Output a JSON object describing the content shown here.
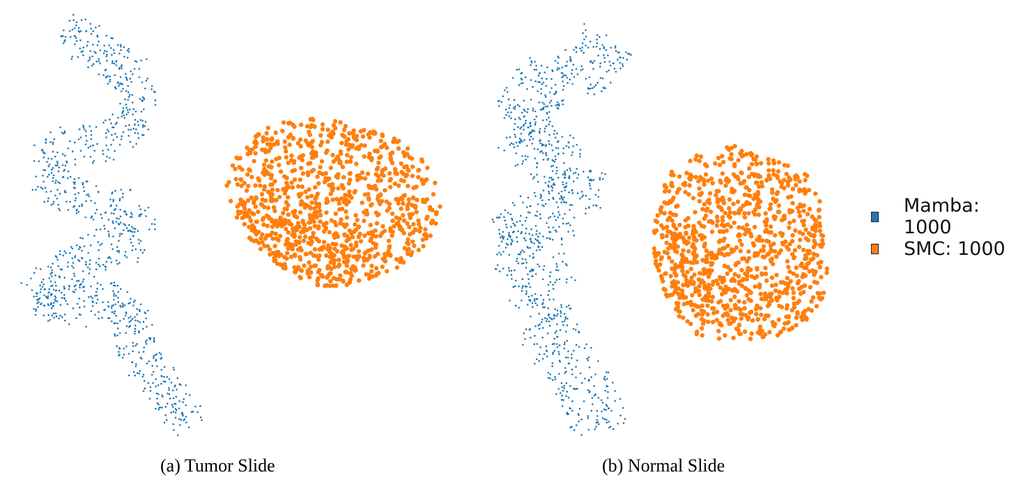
{
  "chart_data": [
    {
      "type": "scatter",
      "caption": "(a) Tumor Slide",
      "series": [
        {
          "name": "Mamba",
          "count": 1000,
          "color": "#1f77b4",
          "marker": "small-dot"
        },
        {
          "name": "SMC",
          "count": 1000,
          "color": "#ff7f0e",
          "marker": "large-dot"
        }
      ]
    },
    {
      "type": "scatter",
      "caption": "(b) Normal Slide",
      "series": [
        {
          "name": "Mamba",
          "count": 1000,
          "color": "#1f77b4",
          "marker": "small-dot"
        },
        {
          "name": "SMC",
          "count": 1000,
          "color": "#ff7f0e",
          "marker": "large-dot"
        }
      ]
    }
  ],
  "legend": {
    "placement": "right",
    "items": [
      {
        "label": "Mamba: 1000",
        "color": "#1f77b4"
      },
      {
        "label": "SMC: 1000",
        "color": "#ff7f0e"
      }
    ]
  },
  "captions": {
    "a": "(a) Tumor Slide",
    "b": "(b) Normal Slide"
  }
}
